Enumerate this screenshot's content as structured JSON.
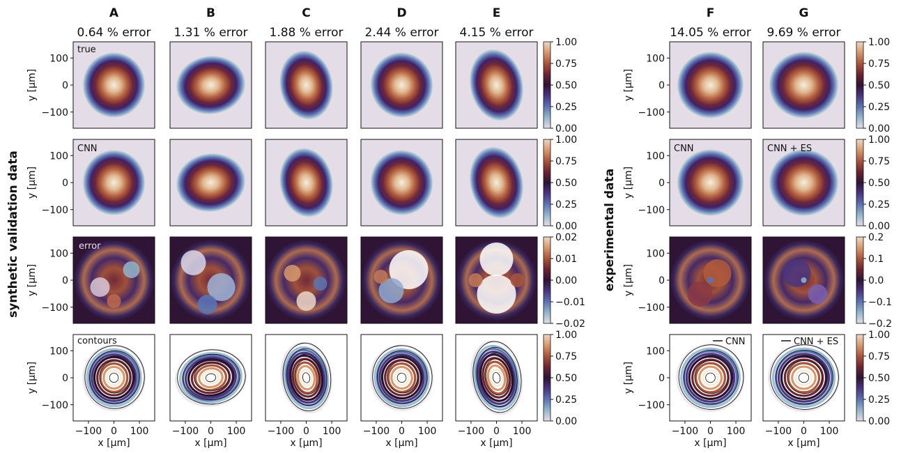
{
  "figure": {
    "group_labels": {
      "left": "synthetic validation data",
      "right": "experimental data"
    },
    "columns": [
      {
        "letter": "A",
        "error_label": "0.64 % error"
      },
      {
        "letter": "B",
        "error_label": "1.31 % error"
      },
      {
        "letter": "C",
        "error_label": "1.88 % error"
      },
      {
        "letter": "D",
        "error_label": "2.44 % error"
      },
      {
        "letter": "E",
        "error_label": "4.15 % error"
      },
      {
        "letter": "F",
        "error_label": "14.05 % error"
      },
      {
        "letter": "G",
        "error_label": "9.69 % error"
      }
    ],
    "panel_labels": {
      "true": "true",
      "cnn": "CNN",
      "cnn_es": "CNN + ES",
      "error": "error",
      "contours": "contours"
    },
    "legend": {
      "cnn": "CNN",
      "cnn_es": "CNN + ES"
    },
    "axes": {
      "xlabel": "x [μm]",
      "ylabel": "y [μm]",
      "x_ticks": [
        "−100",
        "0",
        "100"
      ],
      "y_ticks": [
        "100",
        "0",
        "−100"
      ]
    },
    "colorbars": {
      "unit": [
        "1.00",
        "0.75",
        "0.50",
        "0.25",
        "0.00"
      ],
      "error_synthetic": [
        "0.02",
        "0.01",
        "0.00",
        "−0.01",
        "−0.02"
      ],
      "error_experimental": [
        "0.2",
        "0.1",
        "0.0",
        "−0.1",
        "−0.2"
      ]
    },
    "colormap": [
      "#e4dde8",
      "#94b5cb",
      "#5d73b1",
      "#4a3580",
      "#2f1435",
      "#6b2433",
      "#a9553c",
      "#d6996f",
      "#eed7c5"
    ],
    "background_color": "#e4dde8",
    "error_background_color": "#2f1435"
  },
  "chart_data": {
    "type": "heatmap",
    "grid": "4 rows × 7 columns of 2D intensity maps",
    "rows": [
      "true",
      "CNN",
      "error",
      "contours"
    ],
    "columns": [
      "A",
      "B",
      "C",
      "D",
      "E",
      "F",
      "G"
    ],
    "percent_error": [
      0.64,
      1.31,
      1.88,
      2.44,
      4.15,
      14.05,
      9.69
    ],
    "x_range_um": [
      -160,
      160
    ],
    "y_range_um": [
      -160,
      160
    ],
    "intensity_colorbar_range": [
      0.0,
      1.0
    ],
    "error_colorbar_range_synthetic": [
      -0.02,
      0.02
    ],
    "error_colorbar_range_experimental": [
      -0.2,
      0.2
    ]
  }
}
